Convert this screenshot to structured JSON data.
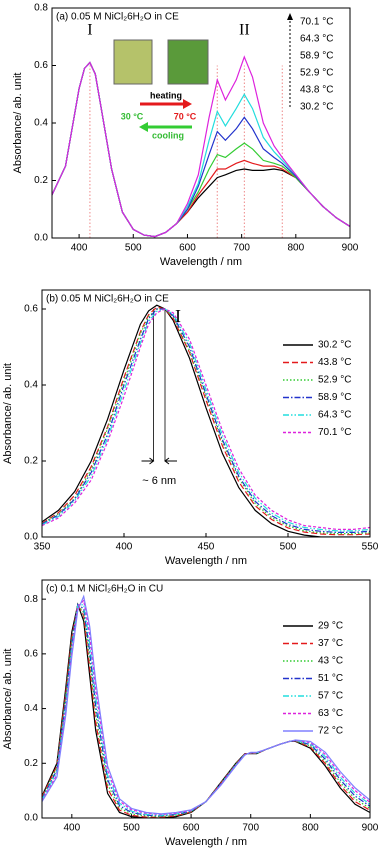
{
  "chart_data": [
    {
      "type": "line",
      "title": "(a) 0.05 M NiCl₂6H₂O in CE",
      "x_label": "Wavelength / nm",
      "y_label": "Absorbance/ ab. unit",
      "xlim": [
        350,
        900
      ],
      "xticks": [
        400,
        500,
        600,
        700,
        800,
        900
      ],
      "ylim": [
        0,
        0.8
      ],
      "yticks": [
        {
          "value": 0,
          "label": "0.0"
        },
        0.2,
        0.4,
        0.6,
        0.8
      ],
      "peak_labels": [
        "I",
        "II"
      ],
      "marker_lines": [
        420,
        655,
        705,
        775
      ],
      "inset": {
        "heating": "heating",
        "cooling": "cooling",
        "low_temp": "30 °C",
        "high_temp": "70 °C"
      },
      "x": [
        350,
        375,
        400,
        410,
        420,
        430,
        440,
        460,
        480,
        500,
        520,
        540,
        560,
        580,
        600,
        620,
        640,
        655,
        670,
        690,
        705,
        720,
        740,
        760,
        775,
        800,
        825,
        850,
        875,
        900
      ],
      "series": [
        {
          "name": "30.2 °C",
          "color": "#000000",
          "values": [
            0.15,
            0.25,
            0.52,
            0.59,
            0.61,
            0.57,
            0.46,
            0.24,
            0.09,
            0.03,
            0.01,
            0.005,
            0.02,
            0.05,
            0.09,
            0.14,
            0.18,
            0.21,
            0.22,
            0.235,
            0.24,
            0.235,
            0.235,
            0.24,
            0.235,
            0.21,
            0.16,
            0.11,
            0.07,
            0.04
          ]
        },
        {
          "name": "43.8 °C",
          "color": "#e41a1c",
          "values": [
            0.15,
            0.25,
            0.52,
            0.59,
            0.61,
            0.57,
            0.46,
            0.24,
            0.09,
            0.03,
            0.01,
            0.005,
            0.02,
            0.05,
            0.09,
            0.15,
            0.2,
            0.24,
            0.24,
            0.26,
            0.27,
            0.26,
            0.25,
            0.25,
            0.24,
            0.21,
            0.16,
            0.11,
            0.07,
            0.04
          ]
        },
        {
          "name": "52.9 °C",
          "color": "#33cc33",
          "values": [
            0.15,
            0.25,
            0.52,
            0.59,
            0.61,
            0.57,
            0.46,
            0.24,
            0.09,
            0.03,
            0.01,
            0.005,
            0.02,
            0.05,
            0.1,
            0.16,
            0.24,
            0.29,
            0.28,
            0.31,
            0.33,
            0.31,
            0.27,
            0.26,
            0.25,
            0.21,
            0.16,
            0.11,
            0.07,
            0.04
          ]
        },
        {
          "name": "58.9 °C",
          "color": "#2233cc",
          "values": [
            0.15,
            0.25,
            0.52,
            0.59,
            0.61,
            0.57,
            0.46,
            0.24,
            0.09,
            0.03,
            0.01,
            0.005,
            0.02,
            0.05,
            0.1,
            0.18,
            0.29,
            0.37,
            0.34,
            0.38,
            0.42,
            0.38,
            0.31,
            0.28,
            0.26,
            0.215,
            0.16,
            0.11,
            0.07,
            0.04
          ]
        },
        {
          "name": "64.3 °C",
          "color": "#22dddd",
          "values": [
            0.15,
            0.25,
            0.52,
            0.59,
            0.61,
            0.57,
            0.46,
            0.24,
            0.09,
            0.03,
            0.01,
            0.005,
            0.02,
            0.05,
            0.11,
            0.19,
            0.34,
            0.44,
            0.39,
            0.45,
            0.5,
            0.45,
            0.35,
            0.3,
            0.27,
            0.22,
            0.16,
            0.11,
            0.07,
            0.04
          ]
        },
        {
          "name": "70.1 °C",
          "color": "#dd22dd",
          "values": [
            0.15,
            0.25,
            0.52,
            0.59,
            0.61,
            0.57,
            0.46,
            0.24,
            0.09,
            0.03,
            0.01,
            0.005,
            0.02,
            0.05,
            0.12,
            0.22,
            0.42,
            0.55,
            0.48,
            0.55,
            0.63,
            0.56,
            0.4,
            0.32,
            0.28,
            0.22,
            0.16,
            0.11,
            0.07,
            0.04
          ]
        }
      ]
    },
    {
      "type": "line",
      "title": "(b) 0.05 M NiCl₂6H₂O in CE",
      "x_label": "Wavelength / nm",
      "y_label": "Absorbance/ ab. unit",
      "xlim": [
        350,
        550
      ],
      "xticks": [
        350,
        400,
        450,
        500,
        550
      ],
      "ylim": [
        0,
        0.65
      ],
      "yticks": [
        {
          "value": 0,
          "label": "0.0"
        },
        0.2,
        0.4,
        0.6
      ],
      "peak_labels": [
        "I"
      ],
      "shift_label": "~ 6 nm",
      "marker_lines": [
        418,
        425
      ],
      "x": [
        350,
        360,
        370,
        380,
        390,
        400,
        410,
        415,
        420,
        425,
        430,
        440,
        450,
        460,
        470,
        480,
        490,
        500,
        510,
        520,
        530,
        540,
        550
      ],
      "series": [
        {
          "name": "30.2 °C",
          "color": "#000000",
          "dash": "solid",
          "values": [
            0.04,
            0.07,
            0.12,
            0.2,
            0.31,
            0.44,
            0.56,
            0.595,
            0.61,
            0.6,
            0.57,
            0.47,
            0.34,
            0.22,
            0.13,
            0.07,
            0.035,
            0.015,
            0.005,
            0.0,
            0.0,
            0.0,
            0.0
          ]
        },
        {
          "name": "43.8 °C",
          "color": "#e41a1c",
          "dash": "dashed",
          "values": [
            0.036,
            0.064,
            0.11,
            0.185,
            0.29,
            0.42,
            0.54,
            0.585,
            0.605,
            0.6,
            0.575,
            0.485,
            0.36,
            0.24,
            0.145,
            0.082,
            0.046,
            0.024,
            0.013,
            0.008,
            0.006,
            0.006,
            0.008
          ]
        },
        {
          "name": "52.9 °C",
          "color": "#33cc33",
          "dash": "dotted",
          "values": [
            0.035,
            0.061,
            0.102,
            0.178,
            0.285,
            0.41,
            0.535,
            0.58,
            0.6,
            0.6,
            0.58,
            0.49,
            0.37,
            0.25,
            0.155,
            0.088,
            0.051,
            0.029,
            0.016,
            0.011,
            0.009,
            0.009,
            0.011
          ]
        },
        {
          "name": "58.9 °C",
          "color": "#2233cc",
          "dash": "dashdot",
          "values": [
            0.034,
            0.058,
            0.1,
            0.17,
            0.27,
            0.4,
            0.52,
            0.575,
            0.6,
            0.6,
            0.582,
            0.5,
            0.376,
            0.256,
            0.16,
            0.094,
            0.056,
            0.033,
            0.02,
            0.015,
            0.012,
            0.012,
            0.015
          ]
        },
        {
          "name": "64.3 °C",
          "color": "#22dddd",
          "dash": "dashdotdot",
          "values": [
            0.032,
            0.054,
            0.096,
            0.16,
            0.26,
            0.385,
            0.51,
            0.567,
            0.594,
            0.6,
            0.586,
            0.51,
            0.388,
            0.268,
            0.17,
            0.102,
            0.063,
            0.039,
            0.025,
            0.02,
            0.016,
            0.016,
            0.02
          ]
        },
        {
          "name": "70.1 °C",
          "color": "#dd22dd",
          "dash": "shortdash",
          "values": [
            0.03,
            0.05,
            0.09,
            0.15,
            0.25,
            0.37,
            0.5,
            0.56,
            0.59,
            0.6,
            0.59,
            0.52,
            0.4,
            0.28,
            0.18,
            0.11,
            0.07,
            0.045,
            0.03,
            0.025,
            0.02,
            0.02,
            0.025
          ]
        }
      ]
    },
    {
      "type": "line",
      "title": "(c) 0.1 M NiCl₂6H₂O in CU",
      "x_label": "Wavelength / nm",
      "y_label": "Absorbance/ ab. unit",
      "xlim": [
        350,
        900
      ],
      "xticks": [
        400,
        500,
        600,
        700,
        800,
        900
      ],
      "ylim": [
        0,
        0.87
      ],
      "yticks": [
        {
          "value": 0,
          "label": "0.0"
        },
        0.2,
        0.4,
        0.6,
        0.8
      ],
      "x": [
        350,
        375,
        390,
        400,
        410,
        420,
        430,
        440,
        460,
        480,
        500,
        525,
        550,
        575,
        600,
        625,
        650,
        675,
        690,
        700,
        710,
        725,
        750,
        765,
        775,
        800,
        825,
        850,
        875,
        900
      ],
      "series": [
        {
          "name": "29 °C",
          "color": "#000000",
          "dash": "solid",
          "values": [
            0.08,
            0.2,
            0.48,
            0.68,
            0.78,
            0.72,
            0.52,
            0.32,
            0.09,
            0.02,
            0.005,
            0.0,
            0.0,
            0.005,
            0.02,
            0.06,
            0.13,
            0.2,
            0.235,
            0.235,
            0.235,
            0.25,
            0.27,
            0.28,
            0.28,
            0.255,
            0.19,
            0.11,
            0.05,
            0.02
          ]
        },
        {
          "name": "37 °C",
          "color": "#e41a1c",
          "dash": "dashed",
          "values": [
            0.077,
            0.19,
            0.46,
            0.66,
            0.78,
            0.74,
            0.55,
            0.35,
            0.107,
            0.029,
            0.01,
            0.003,
            0.003,
            0.008,
            0.022,
            0.06,
            0.128,
            0.198,
            0.234,
            0.236,
            0.236,
            0.25,
            0.27,
            0.28,
            0.281,
            0.259,
            0.199,
            0.12,
            0.06,
            0.028
          ]
        },
        {
          "name": "43 °C",
          "color": "#33cc33",
          "dash": "dotted",
          "values": [
            0.073,
            0.184,
            0.447,
            0.65,
            0.78,
            0.75,
            0.58,
            0.38,
            0.123,
            0.037,
            0.015,
            0.007,
            0.005,
            0.01,
            0.023,
            0.06,
            0.127,
            0.197,
            0.233,
            0.237,
            0.237,
            0.25,
            0.27,
            0.28,
            0.282,
            0.263,
            0.207,
            0.13,
            0.07,
            0.035
          ]
        },
        {
          "name": "51 °C",
          "color": "#2233cc",
          "dash": "dashdot",
          "values": [
            0.07,
            0.175,
            0.43,
            0.635,
            0.78,
            0.765,
            0.61,
            0.41,
            0.14,
            0.045,
            0.02,
            0.01,
            0.008,
            0.013,
            0.025,
            0.06,
            0.125,
            0.195,
            0.233,
            0.238,
            0.238,
            0.25,
            0.27,
            0.28,
            0.283,
            0.268,
            0.215,
            0.14,
            0.08,
            0.043
          ]
        },
        {
          "name": "57 °C",
          "color": "#22dddd",
          "dash": "dashdotdot",
          "values": [
            0.067,
            0.167,
            0.413,
            0.62,
            0.777,
            0.78,
            0.64,
            0.44,
            0.157,
            0.054,
            0.025,
            0.013,
            0.01,
            0.015,
            0.027,
            0.06,
            0.123,
            0.193,
            0.232,
            0.238,
            0.238,
            0.25,
            0.27,
            0.28,
            0.283,
            0.272,
            0.224,
            0.15,
            0.09,
            0.05
          ]
        },
        {
          "name": "63 °C",
          "color": "#dd22dd",
          "dash": "shortdash",
          "values": [
            0.063,
            0.158,
            0.397,
            0.605,
            0.773,
            0.795,
            0.67,
            0.47,
            0.173,
            0.062,
            0.03,
            0.017,
            0.013,
            0.017,
            0.028,
            0.06,
            0.122,
            0.192,
            0.231,
            0.239,
            0.239,
            0.25,
            0.27,
            0.28,
            0.284,
            0.276,
            0.232,
            0.16,
            0.1,
            0.057
          ]
        },
        {
          "name": "72 °C",
          "color": "#8080ff",
          "dash": "solid",
          "values": [
            0.06,
            0.15,
            0.38,
            0.59,
            0.76,
            0.81,
            0.7,
            0.5,
            0.19,
            0.07,
            0.035,
            0.02,
            0.015,
            0.02,
            0.03,
            0.06,
            0.12,
            0.19,
            0.23,
            0.24,
            0.24,
            0.25,
            0.27,
            0.28,
            0.285,
            0.28,
            0.24,
            0.17,
            0.11,
            0.065
          ]
        }
      ]
    }
  ]
}
